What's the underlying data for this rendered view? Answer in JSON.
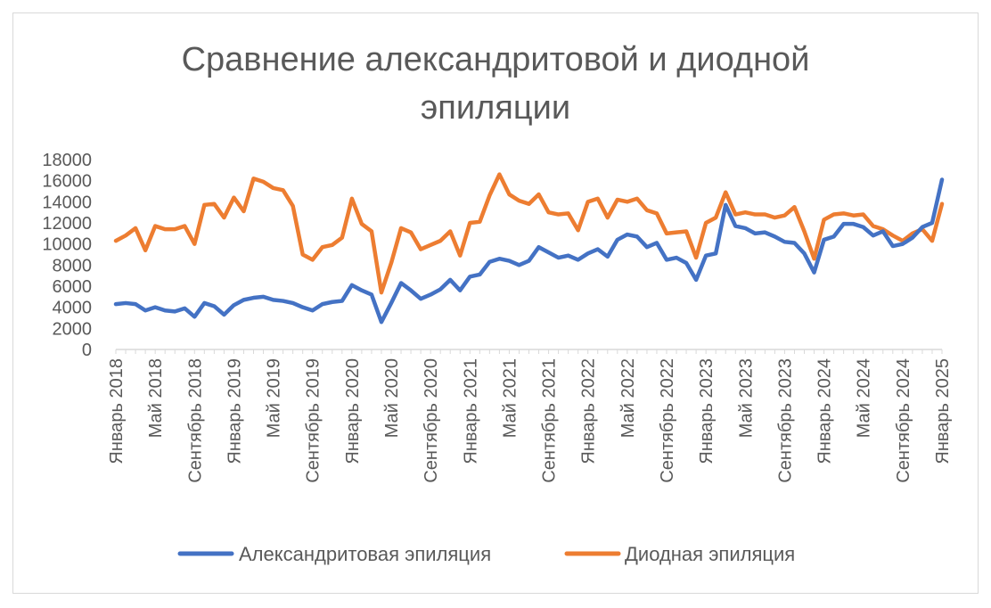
{
  "chart_data": {
    "type": "line",
    "title_lines": [
      "Сравнение александритовой и диодной",
      "эпиляции"
    ],
    "xlabel": "",
    "ylabel": "",
    "ylim": [
      0,
      18000
    ],
    "yticks": [
      "0",
      "2000",
      "4000",
      "6000",
      "8000",
      "10000",
      "12000",
      "14000",
      "16000",
      "18000"
    ],
    "xtick_labels": [
      "Январь 2018",
      "Май 2018",
      "Сентябрь 2018",
      "Январь 2019",
      "Май 2019",
      "Сентябрь 2019",
      "Январь 2020",
      "Май 2020",
      "Сентябрь 2020",
      "Январь 2021",
      "Май 2021",
      "Сентябрь 2021",
      "Январь 2022",
      "Май 2022",
      "Сентябрь 2022",
      "Январь 2023",
      "Май 2023",
      "Сентябрь 2023",
      "Январь 2024",
      "Май 2024",
      "Сентябрь 2024",
      "Январь 2025"
    ],
    "grid": false,
    "legend_position": "bottom",
    "series": [
      {
        "name": "Александритовая эпиляция",
        "color": "#4472c4",
        "values": [
          4300,
          4400,
          4300,
          3700,
          4000,
          3700,
          3600,
          3900,
          3100,
          4400,
          4100,
          3300,
          4200,
          4700,
          4900,
          5000,
          4700,
          4600,
          4400,
          4000,
          3700,
          4300,
          4500,
          4600,
          6100,
          5600,
          5200,
          2600,
          4400,
          6300,
          5600,
          4800,
          5200,
          5700,
          6600,
          5600,
          6900,
          7100,
          8300,
          8600,
          8400,
          8000,
          8400,
          9700,
          9200,
          8700,
          8900,
          8500,
          9100,
          9500,
          8800,
          10400,
          10900,
          10700,
          9700,
          10100,
          8500,
          8700,
          8200,
          6600,
          8900,
          9100,
          13700,
          11700,
          11500,
          11000,
          11100,
          10700,
          10200,
          10100,
          9100,
          7300,
          10400,
          10700,
          11900,
          11900,
          11600,
          10800,
          11200,
          9800,
          10000,
          10600,
          11600,
          12000,
          16100
        ]
      },
      {
        "name": "Диодная эпиляция",
        "color": "#ed7d31",
        "values": [
          10300,
          10800,
          11500,
          9400,
          11700,
          11400,
          11400,
          11700,
          10000,
          13700,
          13800,
          12500,
          14400,
          13100,
          16200,
          15900,
          15300,
          15100,
          13600,
          9000,
          8500,
          9700,
          9900,
          10600,
          14300,
          11900,
          11200,
          5400,
          8200,
          11500,
          11100,
          9500,
          9900,
          10300,
          11200,
          8900,
          12000,
          12100,
          14600,
          16600,
          14700,
          14100,
          13800,
          14700,
          13000,
          12800,
          12900,
          11300,
          14000,
          14300,
          12500,
          14200,
          14000,
          14300,
          13200,
          12900,
          11000,
          11100,
          11200,
          8700,
          12000,
          12500,
          14900,
          12800,
          13000,
          12800,
          12800,
          12500,
          12700,
          13500,
          11200,
          8600,
          12300,
          12800,
          12900,
          12700,
          12800,
          11700,
          11400,
          10800,
          10300,
          11000,
          11400,
          10300,
          13800
        ]
      }
    ]
  }
}
